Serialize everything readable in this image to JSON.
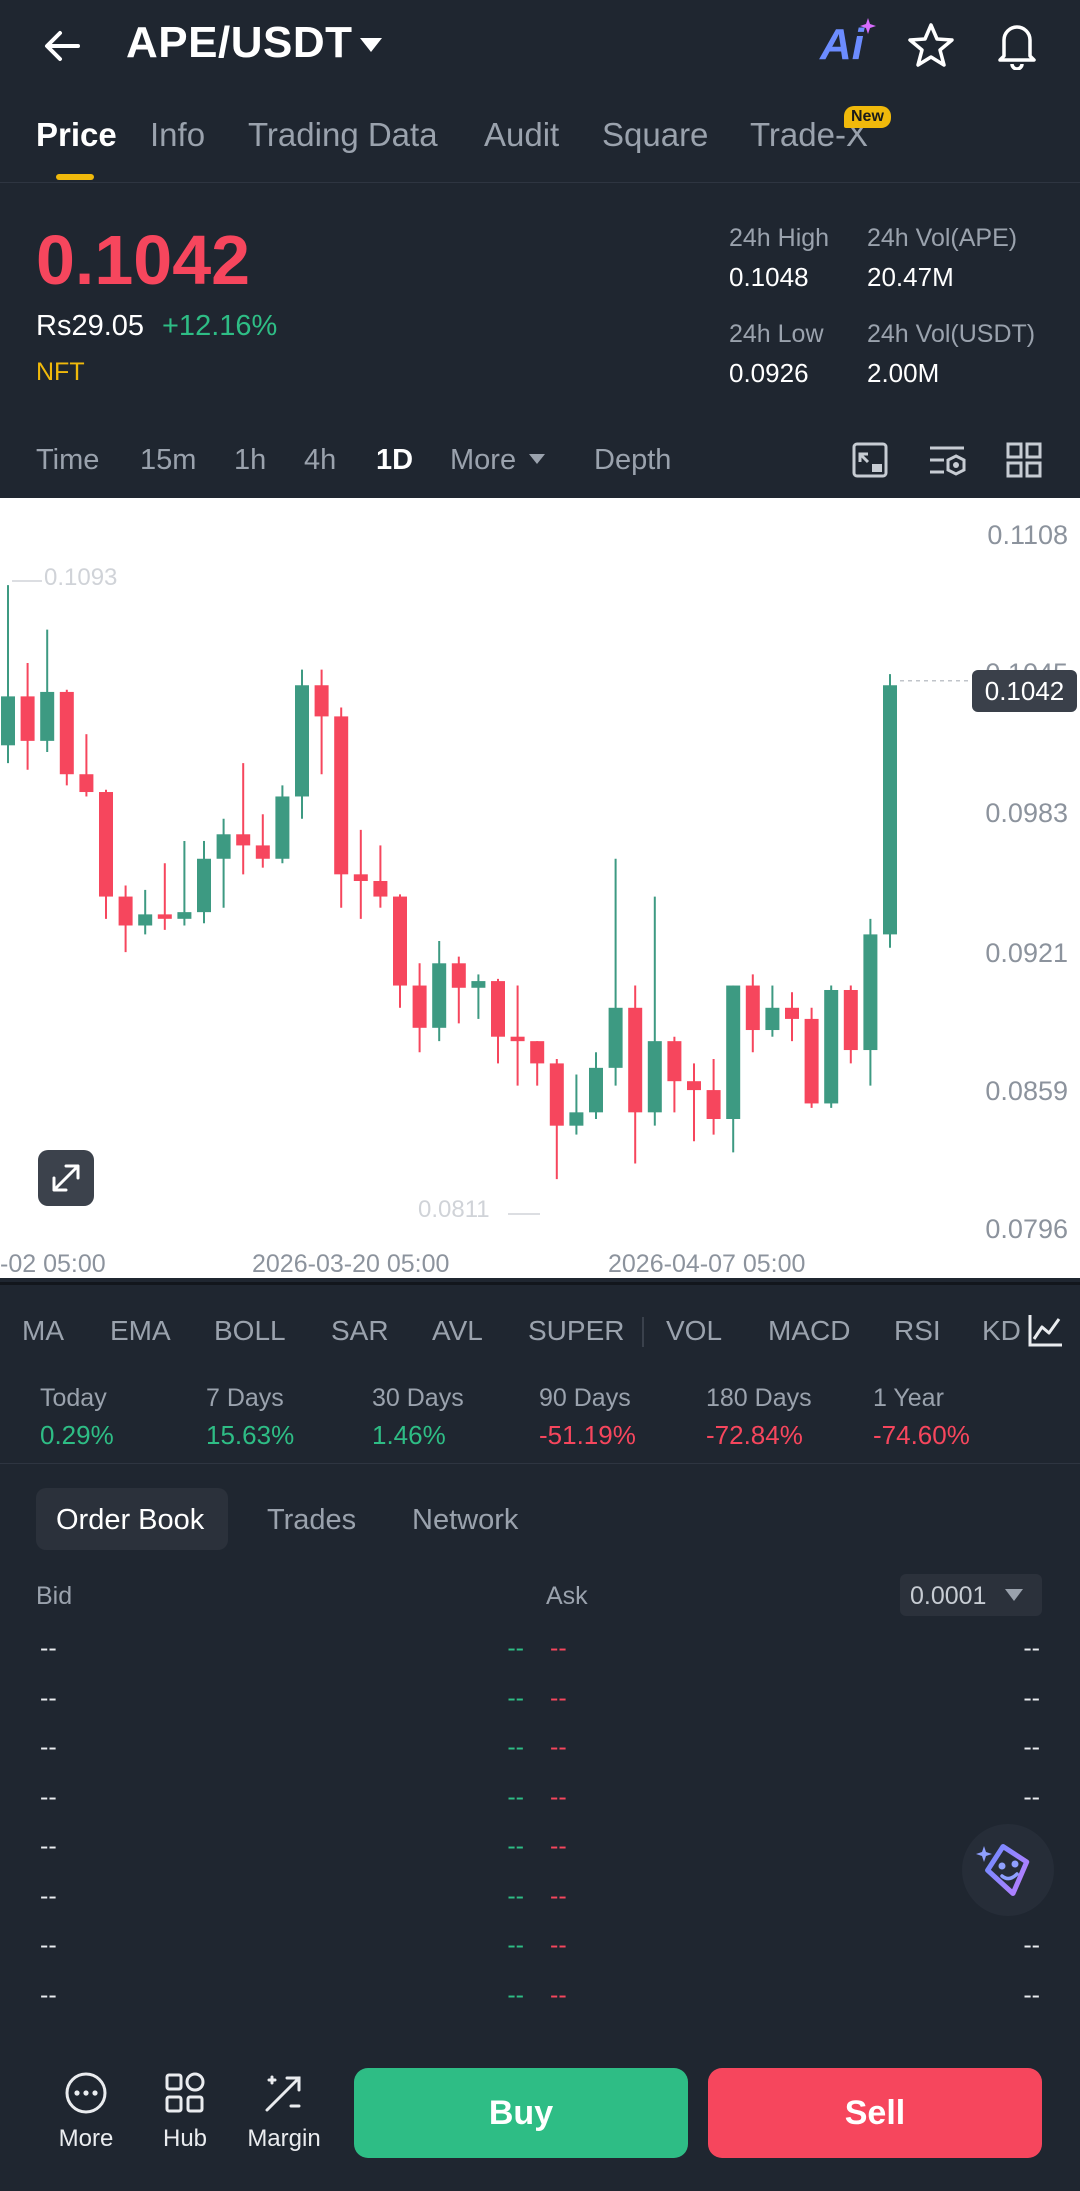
{
  "header": {
    "pair": "APE/USDT",
    "ai_label": "Ai"
  },
  "tabs": [
    {
      "label": "Price",
      "active": true
    },
    {
      "label": "Info"
    },
    {
      "label": "Trading Data"
    },
    {
      "label": "Audit"
    },
    {
      "label": "Square"
    },
    {
      "label": "Trade-X",
      "badge": "New"
    }
  ],
  "price": {
    "last": "0.1042",
    "fiat": "Rs29.05",
    "change": "+12.16%",
    "tag": "NFT"
  },
  "stats": {
    "high_label": "24h High",
    "high": "0.1048",
    "vol_base_label": "24h Vol(APE)",
    "vol_base": "20.47M",
    "low_label": "24h Low",
    "low": "0.0926",
    "vol_quote_label": "24h Vol(USDT)",
    "vol_quote": "2.00M"
  },
  "intervals": [
    "Time",
    "15m",
    "1h",
    "4h",
    "1D",
    "More",
    "Depth"
  ],
  "chart": {
    "y_ticks": [
      "0.1108",
      "0.1045",
      "0.0983",
      "0.0921",
      "0.0859",
      "0.0796"
    ],
    "x_ticks": [
      "-02 05:00",
      "2026-03-20 05:00",
      "2026-04-07 05:00"
    ],
    "current_price": "0.1042",
    "max_label": "0.1093",
    "min_label": "0.0811",
    "colors": {
      "up": "#3d9a82",
      "down": "#f6465d"
    },
    "candles": [
      [
        0.1013,
        0.1035,
        0.1085,
        0.1005
      ],
      [
        0.1035,
        0.1015,
        0.105,
        0.1002
      ],
      [
        0.1015,
        0.1037,
        0.1065,
        0.101
      ],
      [
        0.1037,
        0.1,
        0.1038,
        0.0995
      ],
      [
        0.1,
        0.0992,
        0.1018,
        0.099
      ],
      [
        0.0992,
        0.0945,
        0.0993,
        0.0935
      ],
      [
        0.0945,
        0.0932,
        0.095,
        0.092
      ],
      [
        0.0932,
        0.0937,
        0.0948,
        0.0928
      ],
      [
        0.0937,
        0.0935,
        0.096,
        0.093
      ],
      [
        0.0935,
        0.0938,
        0.097,
        0.0932
      ],
      [
        0.0938,
        0.0962,
        0.097,
        0.0933
      ],
      [
        0.0962,
        0.0973,
        0.098,
        0.094
      ],
      [
        0.0973,
        0.0968,
        0.1005,
        0.0955
      ],
      [
        0.0968,
        0.0962,
        0.0982,
        0.0958
      ],
      [
        0.0962,
        0.099,
        0.0995,
        0.096
      ],
      [
        0.099,
        0.104,
        0.1047,
        0.098
      ],
      [
        0.104,
        0.1026,
        0.1047,
        0.1
      ],
      [
        0.1026,
        0.0955,
        0.103,
        0.094
      ],
      [
        0.0955,
        0.0952,
        0.0975,
        0.0935
      ],
      [
        0.0952,
        0.0945,
        0.0968,
        0.094
      ],
      [
        0.0945,
        0.0905,
        0.0946,
        0.0895
      ],
      [
        0.0905,
        0.0886,
        0.0915,
        0.0875
      ],
      [
        0.0886,
        0.0915,
        0.0925,
        0.088
      ],
      [
        0.0915,
        0.0904,
        0.0918,
        0.0888
      ],
      [
        0.0904,
        0.0907,
        0.091,
        0.089
      ],
      [
        0.0907,
        0.0882,
        0.0908,
        0.087
      ],
      [
        0.0882,
        0.088,
        0.0905,
        0.086
      ],
      [
        0.088,
        0.087,
        0.088,
        0.086
      ],
      [
        0.087,
        0.0842,
        0.0872,
        0.0818
      ],
      [
        0.0842,
        0.0848,
        0.0865,
        0.0838
      ],
      [
        0.0848,
        0.0868,
        0.0875,
        0.0845
      ],
      [
        0.0868,
        0.0895,
        0.0962,
        0.086
      ],
      [
        0.0895,
        0.0848,
        0.0905,
        0.0825
      ],
      [
        0.0848,
        0.088,
        0.0945,
        0.0842
      ],
      [
        0.088,
        0.0862,
        0.0882,
        0.0848
      ],
      [
        0.0862,
        0.0858,
        0.087,
        0.0835
      ],
      [
        0.0858,
        0.0845,
        0.0872,
        0.0838
      ],
      [
        0.0845,
        0.0905,
        0.0905,
        0.083
      ],
      [
        0.0905,
        0.0885,
        0.091,
        0.0875
      ],
      [
        0.0885,
        0.0895,
        0.0905,
        0.0882
      ],
      [
        0.0895,
        0.089,
        0.0902,
        0.088
      ],
      [
        0.089,
        0.0852,
        0.0895,
        0.085
      ],
      [
        0.0852,
        0.0903,
        0.0905,
        0.085
      ],
      [
        0.0903,
        0.0876,
        0.0905,
        0.087
      ],
      [
        0.0876,
        0.0928,
        0.0935,
        0.086
      ],
      [
        0.0928,
        0.104,
        0.1045,
        0.0922
      ]
    ]
  },
  "indicators": [
    "MA",
    "EMA",
    "BOLL",
    "SAR",
    "AVL",
    "SUPER",
    "VOL",
    "MACD",
    "RSI",
    "KD"
  ],
  "performance": [
    {
      "label": "Today",
      "value": "0.29%",
      "dir": "up"
    },
    {
      "label": "7 Days",
      "value": "15.63%",
      "dir": "up"
    },
    {
      "label": "30 Days",
      "value": "1.46%",
      "dir": "up"
    },
    {
      "label": "90 Days",
      "value": "-51.19%",
      "dir": "down"
    },
    {
      "label": "180 Days",
      "value": "-72.84%",
      "dir": "down"
    },
    {
      "label": "1 Year",
      "value": "-74.60%",
      "dir": "down"
    }
  ],
  "orderbook": {
    "tabs": [
      "Order Book",
      "Trades",
      "Network"
    ],
    "bid_label": "Bid",
    "ask_label": "Ask",
    "precision": "0.0001",
    "placeholder": "--"
  },
  "bottom": {
    "more": "More",
    "hub": "Hub",
    "margin": "Margin",
    "buy": "Buy",
    "sell": "Sell"
  }
}
